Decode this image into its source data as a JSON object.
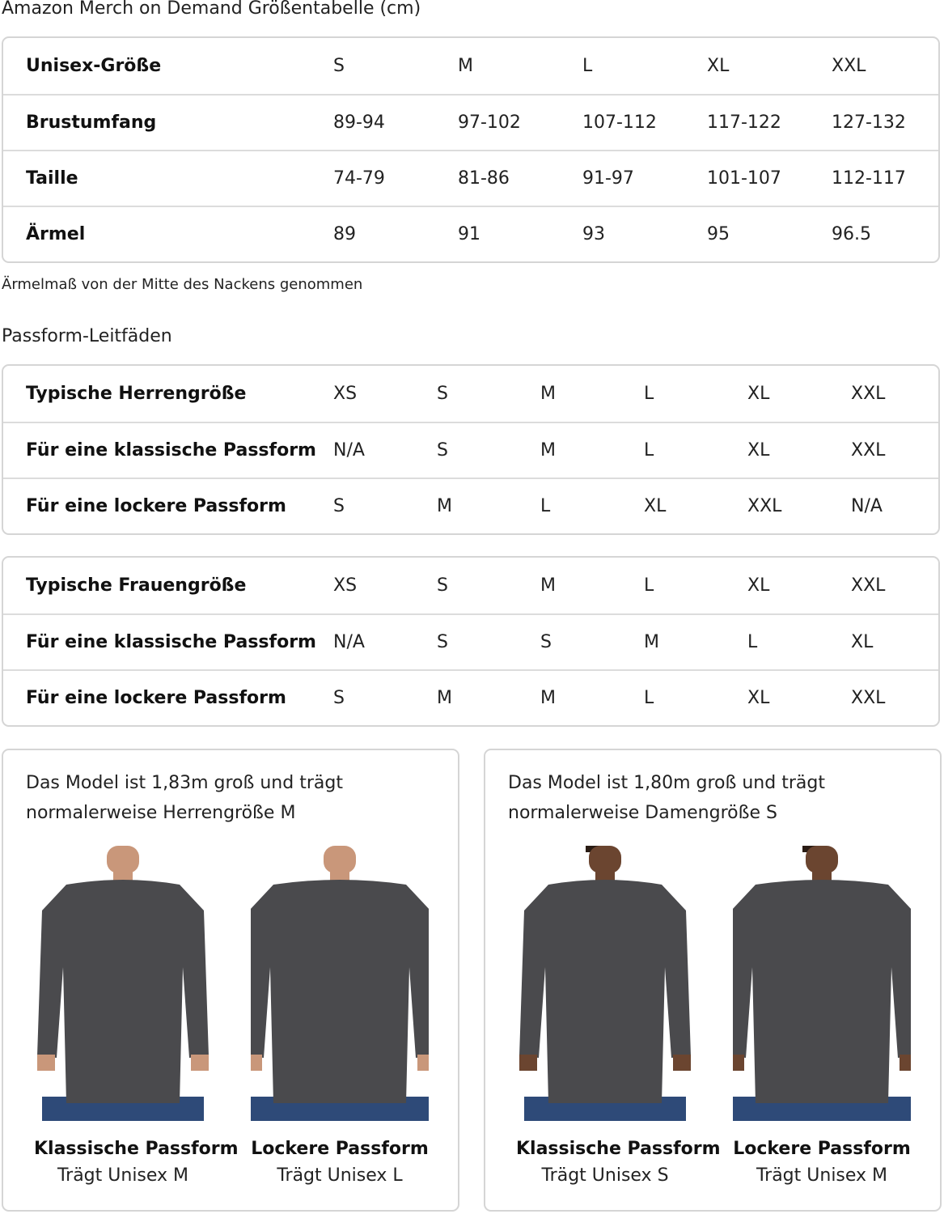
{
  "title": "Amazon Merch on Demand Größentabelle (cm)",
  "unisex_table": {
    "rows": [
      {
        "label": "Unisex-Größe",
        "values": [
          "S",
          "M",
          "L",
          "XL",
          "XXL"
        ]
      },
      {
        "label": "Brustumfang",
        "values": [
          "89-94",
          "97-102",
          "107-112",
          "117-122",
          "127-132"
        ]
      },
      {
        "label": "Taille",
        "values": [
          "74-79",
          "81-86",
          "91-97",
          "101-107",
          "112-117"
        ]
      },
      {
        "label": "Ärmel",
        "values": [
          "89",
          "91",
          "93",
          "95",
          "96.5"
        ]
      }
    ]
  },
  "sleeve_note": "Ärmelmaß von der Mitte des Nackens genommen",
  "fit_heading": "Passform-Leitfäden",
  "men_table": {
    "rows": [
      {
        "label": "Typische Herrengröße",
        "values": [
          "XS",
          "S",
          "M",
          "L",
          "XL",
          "XXL"
        ]
      },
      {
        "label": "Für eine klassische Passform",
        "values": [
          "N/A",
          "S",
          "M",
          "L",
          "XL",
          "XXL"
        ]
      },
      {
        "label": "Für eine lockere Passform",
        "values": [
          "S",
          "M",
          "L",
          "XL",
          "XXL",
          "N/A"
        ]
      }
    ]
  },
  "women_table": {
    "rows": [
      {
        "label": "Typische Frauengröße",
        "values": [
          "XS",
          "S",
          "M",
          "L",
          "XL",
          "XXL"
        ]
      },
      {
        "label": "Für eine klassische Passform",
        "values": [
          "N/A",
          "S",
          "S",
          "M",
          "L",
          "XL"
        ]
      },
      {
        "label": "Für eine lockere Passform",
        "values": [
          "S",
          "M",
          "M",
          "L",
          "XL",
          "XXL"
        ]
      }
    ]
  },
  "cards": [
    {
      "description": "Das Model ist 1,83m groß und trägt normalerweise Herrengröße M",
      "figures": [
        {
          "fit": "Klassische Passform",
          "wears": "Trägt Unisex M"
        },
        {
          "fit": "Lockere Passform",
          "wears": "Trägt Unisex L"
        }
      ]
    },
    {
      "description": "Das Model ist 1,80m groß und trägt normalerweise Damengröße S",
      "figures": [
        {
          "fit": "Klassische Passform",
          "wears": "Trägt Unisex S"
        },
        {
          "fit": "Lockere Passform",
          "wears": "Trägt Unisex M"
        }
      ]
    }
  ],
  "colors": {
    "border": "#d5d5d5",
    "sweatshirt": "#4a4a4d",
    "jeans": "#2e4a78"
  }
}
